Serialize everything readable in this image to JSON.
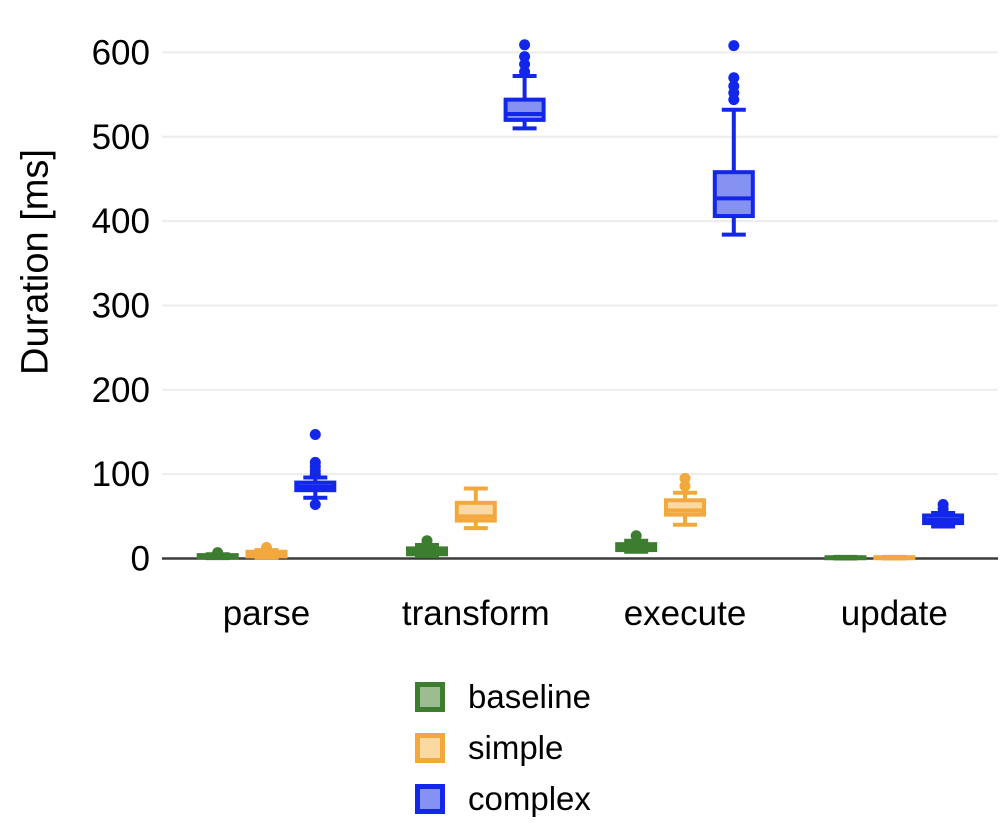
{
  "figure": {
    "background": "#ffffff",
    "axis_color": "#3c3c3c",
    "grid_color": "#ececec",
    "text_color": "#000000"
  },
  "chart_data": {
    "type": "boxplot",
    "title": "",
    "xlabel": "",
    "ylabel": "Duration [ms]",
    "categories": [
      "parse",
      "transform",
      "execute",
      "update"
    ],
    "yticks": [
      0,
      100,
      200,
      300,
      400,
      500,
      600
    ],
    "ylim": [
      0,
      640
    ],
    "grid": true,
    "legend_position": "bottom-center",
    "series": [
      {
        "name": "baseline",
        "color": "#3C7D30",
        "fill": "#9BBD90",
        "boxes": [
          {
            "whislo": 0.5,
            "q1": 1.5,
            "med": 2.5,
            "q3": 4,
            "whishi": 5,
            "fliers": [
              7
            ]
          },
          {
            "whislo": 3,
            "q1": 5,
            "med": 8,
            "q3": 12,
            "whishi": 16,
            "fliers": [
              21
            ]
          },
          {
            "whislo": 8,
            "q1": 10,
            "med": 13,
            "q3": 17,
            "whishi": 21,
            "fliers": [
              27
            ]
          },
          {
            "whislo": 0,
            "q1": 0.5,
            "med": 1,
            "q3": 1.5,
            "whishi": 2,
            "fliers": []
          }
        ]
      },
      {
        "name": "simple",
        "color": "#F2A83C",
        "fill": "#FAD9A2",
        "boxes": [
          {
            "whislo": 1,
            "q1": 2.5,
            "med": 4.5,
            "q3": 8,
            "whishi": 10,
            "fliers": [
              13
            ]
          },
          {
            "whislo": 36,
            "q1": 45,
            "med": 50,
            "q3": 66,
            "whishi": 83,
            "fliers": []
          },
          {
            "whislo": 40,
            "q1": 52,
            "med": 57,
            "q3": 69,
            "whishi": 78,
            "fliers": [
              86,
              95
            ]
          },
          {
            "whislo": 0,
            "q1": 0.5,
            "med": 1,
            "q3": 1.5,
            "whishi": 2,
            "fliers": []
          }
        ]
      },
      {
        "name": "complex",
        "color": "#1227E9",
        "fill": "#8692F1",
        "boxes": [
          {
            "whislo": 72,
            "q1": 81,
            "med": 85,
            "q3": 90,
            "whishi": 96,
            "fliers": [
              64,
              100,
              104,
              109,
              114,
              147
            ]
          },
          {
            "whislo": 510,
            "q1": 520,
            "med": 527,
            "q3": 544,
            "whishi": 572,
            "fliers": [
              577,
              586,
              595,
              609
            ]
          },
          {
            "whislo": 384,
            "q1": 406,
            "med": 427,
            "q3": 458,
            "whishi": 532,
            "fliers": [
              544,
              552,
              560,
              570,
              608
            ]
          },
          {
            "whislo": 38,
            "q1": 42,
            "med": 46,
            "q3": 51,
            "whishi": 54,
            "fliers": [
              59,
              64
            ]
          }
        ]
      }
    ]
  }
}
